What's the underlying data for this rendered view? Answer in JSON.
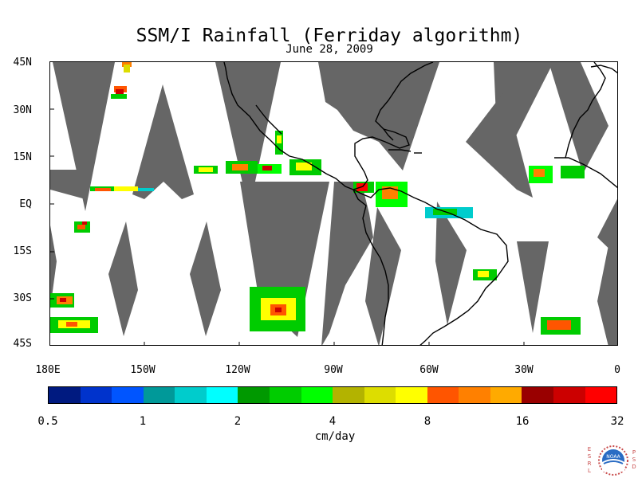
{
  "header": {
    "title": "SSM/I Rainfall (Ferriday algorithm)",
    "date": "June 28, 2009"
  },
  "map": {
    "latitude_labels": [
      "45N",
      "30N",
      "15N",
      "EQ",
      "15S",
      "30S",
      "45S"
    ],
    "longitude_labels": [
      "180E",
      "150W",
      "120W",
      "90W",
      "60W",
      "30W",
      "0"
    ],
    "colors": {
      "land_outline": "#000000",
      "no_data_swath": "#666666",
      "background": "#ffffff"
    }
  },
  "legend": {
    "labels": [
      "0.5",
      "1",
      "2",
      "4",
      "8",
      "16",
      "32"
    ],
    "unit": "cm/day",
    "colors": [
      "#001a80",
      "#0033cc",
      "#0055ff",
      "#009999",
      "#00cccc",
      "#00ffff",
      "#009900",
      "#00cc00",
      "#00ff00",
      "#b3b300",
      "#dddd00",
      "#ffff00",
      "#ff5500",
      "#ff8000",
      "#ffaa00",
      "#990000",
      "#cc0000",
      "#ff0000"
    ]
  },
  "logo": {
    "left_letters": "ESRL",
    "right_letters": "PSD",
    "emblem_text": "NOAA"
  }
}
